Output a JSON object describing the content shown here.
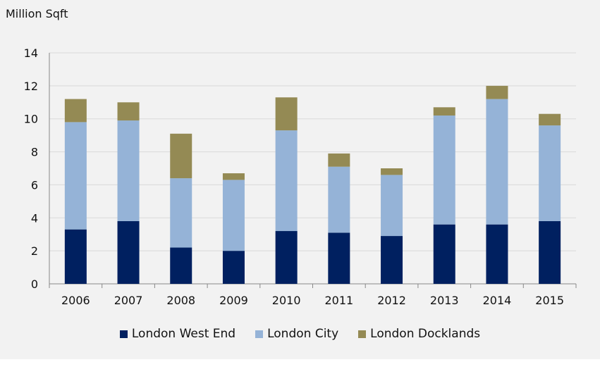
{
  "chart_data": {
    "type": "bar",
    "stacked": true,
    "ylabel": "Million Sqft",
    "xlabel": "",
    "title": "",
    "ylim": [
      0,
      14
    ],
    "yticks": [
      0,
      2,
      4,
      6,
      8,
      10,
      12,
      14
    ],
    "grid": true,
    "legend_position": "bottom",
    "categories": [
      "2006",
      "2007",
      "2008",
      "2009",
      "2010",
      "2011",
      "2012",
      "2013",
      "2014",
      "2015"
    ],
    "series": [
      {
        "name": "London West End",
        "color": "#002060",
        "values": [
          3.3,
          3.8,
          2.2,
          2.0,
          3.2,
          3.1,
          2.9,
          3.6,
          3.6,
          3.8
        ]
      },
      {
        "name": "London City",
        "color": "#95b3d7",
        "values": [
          6.5,
          6.1,
          4.2,
          4.3,
          6.1,
          4.0,
          3.7,
          6.6,
          7.6,
          5.8
        ]
      },
      {
        "name": "London Docklands",
        "color": "#948a54",
        "values": [
          1.4,
          1.1,
          2.7,
          0.4,
          2.0,
          0.8,
          0.4,
          0.5,
          0.8,
          0.7
        ]
      }
    ]
  }
}
